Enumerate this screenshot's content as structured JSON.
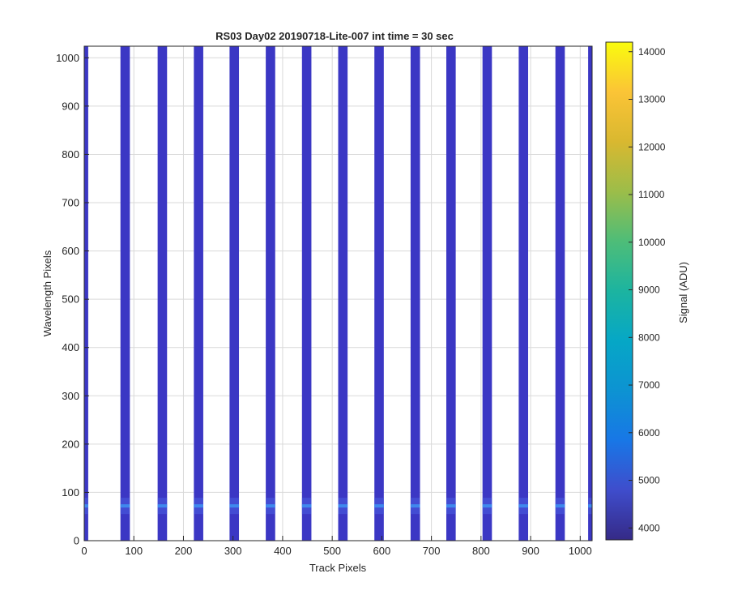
{
  "chart_data": {
    "type": "heatmap",
    "title": "RS03 Day02 20190718-Lite-007 int time = 30 sec",
    "xlabel": "Track Pixels",
    "ylabel": "Wavelength Pixels",
    "xlim": [
      0,
      1024
    ],
    "ylim": [
      0,
      1024
    ],
    "x_ticks": [
      0,
      100,
      200,
      300,
      400,
      500,
      600,
      700,
      800,
      900,
      1000
    ],
    "y_ticks": [
      0,
      100,
      200,
      300,
      400,
      500,
      600,
      700,
      800,
      900,
      1000
    ],
    "grid": true,
    "stripes": {
      "value": 4100,
      "bright_row_center": 72,
      "bright_value": 6200,
      "x_ranges": [
        [
          0,
          8
        ],
        [
          73,
          92
        ],
        [
          148,
          167
        ],
        [
          221,
          240
        ],
        [
          293,
          312
        ],
        [
          366,
          385
        ],
        [
          439,
          458
        ],
        [
          512,
          531
        ],
        [
          585,
          604
        ],
        [
          658,
          677
        ],
        [
          730,
          749
        ],
        [
          803,
          822
        ],
        [
          876,
          895
        ],
        [
          950,
          969
        ],
        [
          1016,
          1024
        ]
      ]
    },
    "colorbar": {
      "label": "Signal (ADU)",
      "range": [
        3750,
        14200
      ],
      "ticks": [
        4000,
        5000,
        6000,
        7000,
        8000,
        9000,
        10000,
        11000,
        12000,
        13000,
        14000
      ],
      "colormap": "parula"
    }
  }
}
